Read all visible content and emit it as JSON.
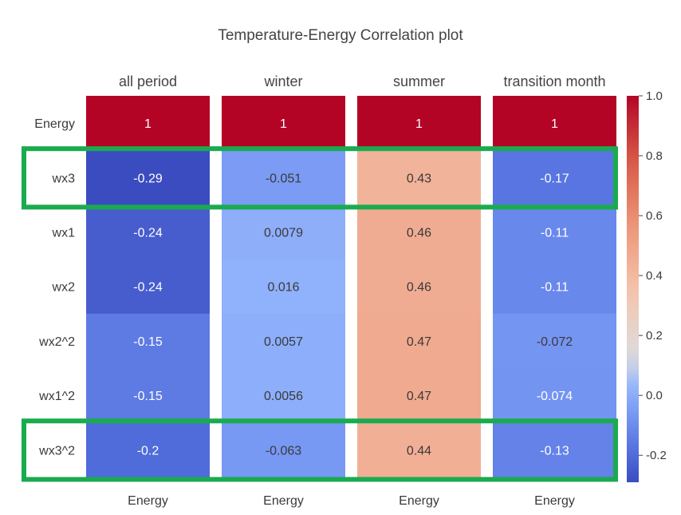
{
  "chart_data": {
    "type": "heatmap",
    "title": "Temperature-Energy Correlation plot",
    "panels": [
      "all period",
      "winter",
      "summer",
      "transition month"
    ],
    "rows": [
      "Energy",
      "wx3",
      "wx1",
      "wx2",
      "wx2^2",
      "wx1^2",
      "wx3^2"
    ],
    "x_tick_label": "Energy",
    "values": [
      [
        1,
        1,
        1,
        1
      ],
      [
        -0.29,
        -0.051,
        0.43,
        -0.17
      ],
      [
        -0.24,
        0.0079,
        0.46,
        -0.11
      ],
      [
        -0.24,
        0.016,
        0.46,
        -0.11
      ],
      [
        -0.15,
        0.0057,
        0.47,
        -0.072
      ],
      [
        -0.15,
        0.0056,
        0.47,
        -0.074
      ],
      [
        -0.2,
        -0.063,
        0.44,
        -0.13
      ]
    ],
    "labels": [
      [
        "1",
        "1",
        "1",
        "1"
      ],
      [
        "-0.29",
        "-0.051",
        "0.43",
        "-0.17"
      ],
      [
        "-0.24",
        "0.0079",
        "0.46",
        "-0.11"
      ],
      [
        "-0.24",
        "0.016",
        "0.46",
        "-0.11"
      ],
      [
        "-0.15",
        "0.0057",
        "0.47",
        "-0.072"
      ],
      [
        "-0.15",
        "0.0056",
        "0.47",
        "-0.074"
      ],
      [
        "-0.2",
        "-0.063",
        "0.44",
        "-0.13"
      ]
    ],
    "colorbar": {
      "range": [
        -0.29,
        1.0
      ],
      "ticks": [
        "1.0",
        "0.8",
        "0.6",
        "0.4",
        "0.2",
        "0.0",
        "-0.2"
      ],
      "tick_values": [
        1.0,
        0.8,
        0.6,
        0.4,
        0.2,
        0.0,
        -0.2
      ],
      "colormap": "coolwarm"
    },
    "highlighted_rows": [
      "wx3",
      "wx3^2"
    ],
    "highlight_color": "#1aab4f"
  }
}
